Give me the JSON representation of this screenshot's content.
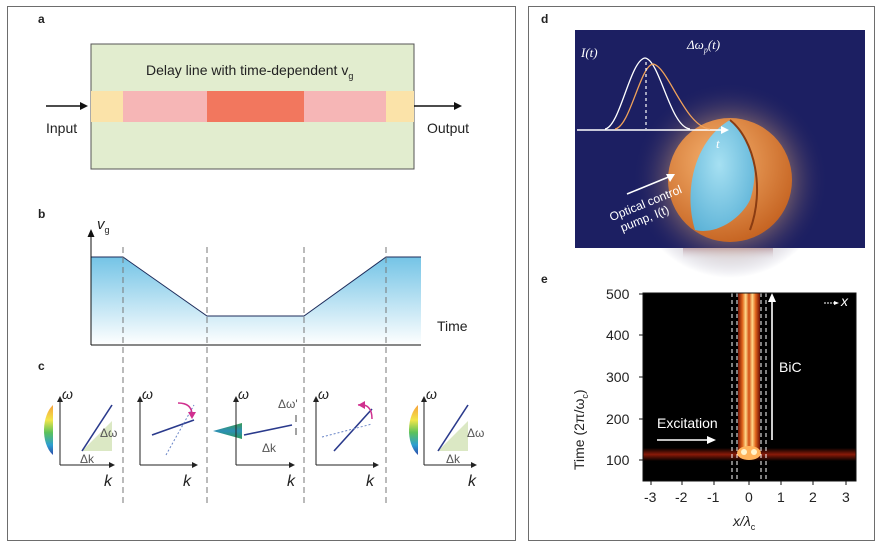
{
  "panel_labels": {
    "a": "a",
    "b": "b",
    "c": "c",
    "d": "d",
    "e": "e"
  },
  "panel_a": {
    "title": "Delay line with time-dependent v",
    "title_sub": "g",
    "input_label": "Input",
    "output_label": "Output",
    "colors": {
      "box": "#e2edcf",
      "guide_end": "#fbe3a9",
      "segment_light": "#f6b6b6",
      "segment_dark": "#f2775e"
    }
  },
  "panel_b": {
    "ylabel": "v",
    "ylabel_sub": "g",
    "xlabel": "Time",
    "fill_color": "#7fcbe8",
    "profile_levels": [
      "high",
      "decrease",
      "low",
      "increase",
      "high"
    ]
  },
  "panel_c": {
    "axis_omega": "ω",
    "axis_k": "k",
    "delta_omega": "Δω",
    "delta_k": "Δk",
    "delta_omega_prime": "Δω'",
    "line_color": "#2a3a8c",
    "arrow_color": "#d0308f"
  },
  "panel_d": {
    "intensity_label": "I(t)",
    "delta_omega_p": "Δω",
    "delta_omega_p_sub": "p",
    "delta_omega_p_suffix": "(t)",
    "time_axis": "t",
    "pump_line1": "Optical control",
    "pump_line2": "pump, I(t)",
    "colors": {
      "background": "#1c1f62",
      "intensity": "#ffffff",
      "shift": "#f0a25a",
      "shell": "#e98a3e",
      "core": "#8fd3ec"
    }
  },
  "panel_e": {
    "ylabel": "Time (2π/ω",
    "ylabel_sub": "c",
    "ylabel_close": ")",
    "xlabel": "x/λ",
    "xlabel_sub": "c",
    "excitation_label": "Excitation",
    "bic_label": "BiC",
    "x_axis_tag": "x",
    "x_ticks": [
      "-3",
      "-2",
      "-1",
      "0",
      "1",
      "2",
      "3"
    ],
    "y_ticks": [
      "500",
      "400",
      "300",
      "200",
      "100"
    ]
  }
}
